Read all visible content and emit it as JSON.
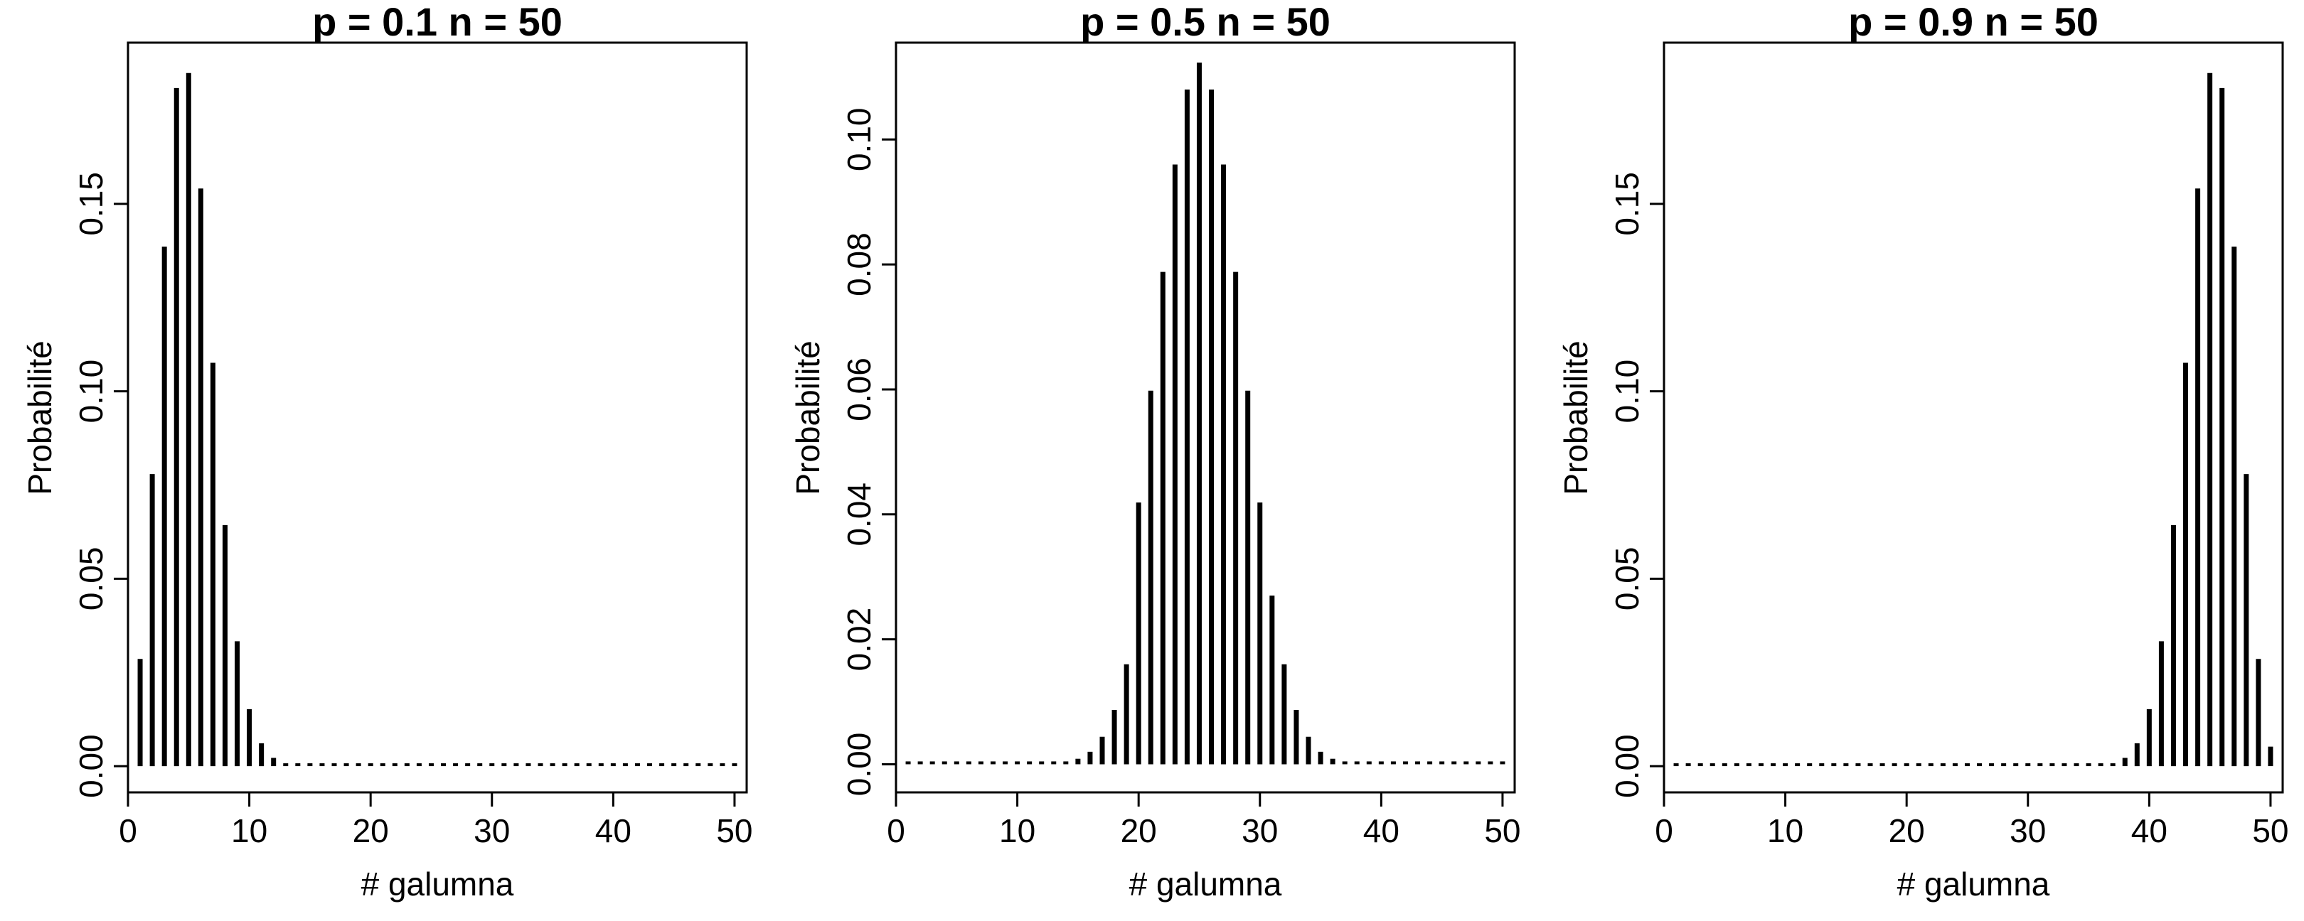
{
  "chart_data": [
    {
      "type": "bar",
      "title": "p = 0.1 n = 50",
      "xlabel": "# galumna",
      "ylabel": "Probabilité",
      "xlim": [
        0,
        51
      ],
      "ylim": [
        -0.007,
        0.193
      ],
      "xticks": [
        0,
        10,
        20,
        30,
        40,
        50
      ],
      "xtick_labels": [
        "0",
        "10",
        "20",
        "30",
        "40",
        "50"
      ],
      "yticks": [
        0,
        0.05,
        0.1,
        0.15
      ],
      "ytick_labels": [
        "0.00",
        "0.05",
        "0.10",
        "0.15"
      ],
      "x": [
        1,
        2,
        3,
        4,
        5,
        6,
        7,
        8,
        9,
        10,
        11,
        12,
        13,
        14,
        15,
        16,
        17,
        18,
        19,
        20,
        21,
        22,
        23,
        24,
        25,
        26,
        27,
        28,
        29,
        30,
        31,
        32,
        33,
        34,
        35,
        36,
        37,
        38,
        39,
        40,
        41,
        42,
        43,
        44,
        45,
        46,
        47,
        48,
        49,
        50
      ],
      "values": [
        0.0286,
        0.0779,
        0.1386,
        0.1809,
        0.1849,
        0.1541,
        0.1076,
        0.0643,
        0.0333,
        0.0152,
        0.0061,
        0.0022,
        0.0007,
        0.0002,
        0.0001,
        0,
        0,
        0,
        0,
        0,
        0,
        0,
        0,
        0,
        0,
        0,
        0,
        0,
        0,
        0,
        0,
        0,
        0,
        0,
        0,
        0,
        0,
        0,
        0,
        0,
        0,
        0,
        0,
        0,
        0,
        0,
        0,
        0,
        0,
        0
      ],
      "color": "#000000"
    },
    {
      "type": "bar",
      "title": "p = 0.5 n = 50",
      "xlabel": "# galumna",
      "ylabel": "Probabilité",
      "xlim": [
        0,
        51
      ],
      "ylim": [
        -0.0045,
        0.1155
      ],
      "xticks": [
        0,
        10,
        20,
        30,
        40,
        50
      ],
      "xtick_labels": [
        "0",
        "10",
        "20",
        "30",
        "40",
        "50"
      ],
      "yticks": [
        0,
        0.02,
        0.04,
        0.06,
        0.08,
        0.1
      ],
      "ytick_labels": [
        "0.00",
        "0.02",
        "0.04",
        "0.06",
        "0.08",
        "0.10"
      ],
      "x": [
        1,
        2,
        3,
        4,
        5,
        6,
        7,
        8,
        9,
        10,
        11,
        12,
        13,
        14,
        15,
        16,
        17,
        18,
        19,
        20,
        21,
        22,
        23,
        24,
        25,
        26,
        27,
        28,
        29,
        30,
        31,
        32,
        33,
        34,
        35,
        36,
        37,
        38,
        39,
        40,
        41,
        42,
        43,
        44,
        45,
        46,
        47,
        48,
        49,
        50
      ],
      "values": [
        0,
        0,
        0,
        0,
        0,
        0,
        0,
        0,
        0,
        0,
        1e-05,
        4e-05,
        0.00011,
        0.00033,
        0.00088,
        0.002,
        0.0044,
        0.0087,
        0.016,
        0.0419,
        0.0598,
        0.0788,
        0.096,
        0.108,
        0.1123,
        0.108,
        0.096,
        0.0788,
        0.0598,
        0.0419,
        0.027,
        0.016,
        0.0087,
        0.0044,
        0.002,
        0.00088,
        0.00033,
        0.00011,
        4e-05,
        1e-05,
        0,
        0,
        0,
        0,
        0,
        0,
        0,
        0,
        0,
        0
      ],
      "color": "#000000"
    },
    {
      "type": "bar",
      "title": "p = 0.9 n = 50",
      "xlabel": "# galumna",
      "ylabel": "Probabilité",
      "xlim": [
        0,
        51
      ],
      "ylim": [
        -0.007,
        0.193
      ],
      "xticks": [
        0,
        10,
        20,
        30,
        40,
        50
      ],
      "xtick_labels": [
        "0",
        "10",
        "20",
        "30",
        "40",
        "50"
      ],
      "yticks": [
        0,
        0.05,
        0.1,
        0.15
      ],
      "ytick_labels": [
        "0.00",
        "0.05",
        "0.10",
        "0.15"
      ],
      "x": [
        1,
        2,
        3,
        4,
        5,
        6,
        7,
        8,
        9,
        10,
        11,
        12,
        13,
        14,
        15,
        16,
        17,
        18,
        19,
        20,
        21,
        22,
        23,
        24,
        25,
        26,
        27,
        28,
        29,
        30,
        31,
        32,
        33,
        34,
        35,
        36,
        37,
        38,
        39,
        40,
        41,
        42,
        43,
        44,
        45,
        46,
        47,
        48,
        49,
        50
      ],
      "values": [
        0,
        0,
        0,
        0,
        0,
        0,
        0,
        0,
        0,
        0,
        0,
        0,
        0,
        0,
        0,
        0,
        0,
        0,
        0,
        0,
        0,
        0,
        0,
        0,
        0,
        0,
        0,
        0,
        0,
        0,
        0,
        0,
        0,
        0,
        0,
        0,
        0.0007,
        0.0022,
        0.0061,
        0.0152,
        0.0333,
        0.0643,
        0.1076,
        0.1541,
        0.1849,
        0.1809,
        0.1386,
        0.0779,
        0.0286,
        0.0052
      ],
      "color": "#000000"
    }
  ]
}
